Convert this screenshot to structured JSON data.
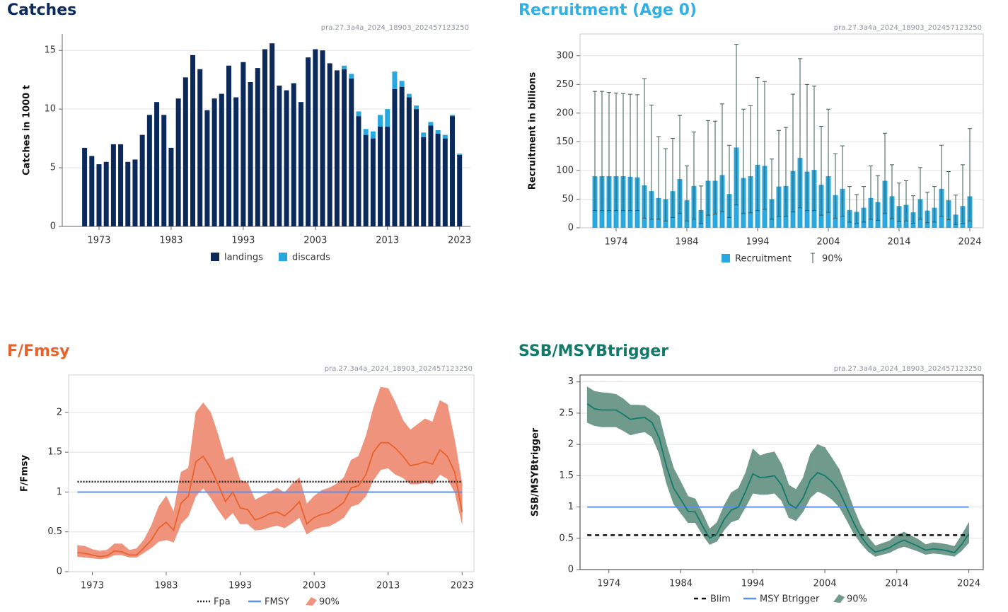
{
  "chart_data": [
    {
      "type": "bar",
      "title": "Catches",
      "title_color": "#0b2a5b",
      "subtitle": "pra.27.3a4a_2024_18903_202457123250",
      "ylabel": "Catches in 1000 t",
      "stacked": true,
      "grid": true,
      "x": [
        1971,
        1972,
        1973,
        1974,
        1975,
        1976,
        1977,
        1978,
        1979,
        1980,
        1981,
        1982,
        1983,
        1984,
        1985,
        1986,
        1987,
        1988,
        1989,
        1990,
        1991,
        1992,
        1993,
        1994,
        1995,
        1996,
        1997,
        1998,
        1999,
        2000,
        2001,
        2002,
        2003,
        2004,
        2005,
        2006,
        2007,
        2008,
        2009,
        2010,
        2011,
        2012,
        2013,
        2014,
        2015,
        2016,
        2017,
        2018,
        2019,
        2020,
        2021,
        2022,
        2023
      ],
      "xlim": [
        1967.9,
        2024.5
      ],
      "xticks": [
        1973,
        1983,
        1993,
        2003,
        2013,
        2023
      ],
      "ylim": [
        0,
        16.4
      ],
      "yticks": [
        0,
        5,
        10,
        15
      ],
      "series": [
        {
          "name": "landings",
          "color": "#0b2a5b",
          "values": [
            6.7,
            6.0,
            5.3,
            5.5,
            7.0,
            7.0,
            5.5,
            5.7,
            7.8,
            9.5,
            10.6,
            9.5,
            6.7,
            10.9,
            12.7,
            14.6,
            13.4,
            9.9,
            10.9,
            11.3,
            13.7,
            11.0,
            14.0,
            12.3,
            13.5,
            15.1,
            15.6,
            12.0,
            11.6,
            12.2,
            10.6,
            14.4,
            15.1,
            15.0,
            13.9,
            13.3,
            13.4,
            12.6,
            9.4,
            7.8,
            7.5,
            8.5,
            8.5,
            11.7,
            11.9,
            11.0,
            10.0,
            7.6,
            8.6,
            7.9,
            7.5,
            9.4,
            6.1
          ]
        },
        {
          "name": "discards",
          "color": "#29a8e0",
          "values": [
            0,
            0,
            0,
            0,
            0,
            0,
            0,
            0,
            0,
            0,
            0,
            0,
            0,
            0,
            0,
            0,
            0,
            0,
            0,
            0,
            0,
            0,
            0,
            0,
            0,
            0,
            0,
            0,
            0,
            0,
            0,
            0,
            0,
            0,
            0,
            0,
            0.3,
            0.4,
            0.4,
            0.5,
            0.6,
            1.0,
            1.5,
            1.5,
            0.5,
            0.3,
            0.3,
            0.4,
            0.3,
            0.3,
            0.3,
            0.1,
            0.1
          ]
        }
      ]
    },
    {
      "type": "bar",
      "title": "Recruitment (Age 0)",
      "title_color": "#2fb0e6",
      "subtitle": "pra.27.3a4a_2024_18903_202457123250",
      "ylabel": "Recruitment in billions",
      "grid": true,
      "x": [
        1971,
        1972,
        1973,
        1974,
        1975,
        1976,
        1977,
        1978,
        1979,
        1980,
        1981,
        1982,
        1983,
        1984,
        1985,
        1986,
        1987,
        1988,
        1989,
        1990,
        1991,
        1992,
        1993,
        1994,
        1995,
        1996,
        1997,
        1998,
        1999,
        2000,
        2001,
        2002,
        2003,
        2004,
        2005,
        2006,
        2007,
        2008,
        2009,
        2010,
        2011,
        2012,
        2013,
        2014,
        2015,
        2016,
        2017,
        2018,
        2019,
        2020,
        2021,
        2022,
        2023,
        2024
      ],
      "xlim": [
        1968.9,
        2025.9
      ],
      "xticks": [
        1974,
        1984,
        1994,
        2004,
        2014,
        2024
      ],
      "ylim": [
        0,
        338
      ],
      "yticks": [
        0,
        50,
        100,
        150,
        200,
        250,
        300
      ],
      "series": [
        {
          "name": "Recruitment",
          "color": "#29a8e0",
          "values": [
            90,
            90,
            90,
            90,
            90,
            89,
            88,
            74,
            64,
            52,
            50,
            64,
            85,
            48,
            73,
            31,
            82,
            82,
            92,
            59,
            140,
            87,
            90,
            110,
            108,
            50,
            72,
            73,
            99,
            122,
            98,
            101,
            75,
            90,
            57,
            68,
            31,
            28,
            35,
            52,
            45,
            82,
            55,
            38,
            40,
            27,
            50,
            30,
            35,
            68,
            48,
            23,
            38,
            55
          ],
          "interval": {
            "name": "90%",
            "color": "#3a5a50",
            "lower": [
              30,
              30,
              30,
              30,
              30,
              30,
              30,
              17,
              15,
              15,
              12,
              18,
              25,
              12,
              15,
              8,
              22,
              24,
              28,
              18,
              40,
              25,
              26,
              30,
              32,
              15,
              20,
              20,
              28,
              35,
              30,
              30,
              22,
              27,
              17,
              20,
              10,
              8,
              10,
              15,
              13,
              25,
              16,
              11,
              12,
              8,
              15,
              9,
              10,
              20,
              14,
              6,
              8,
              12
            ],
            "upper": [
              238,
              238,
              236,
              235,
              234,
              233,
              232,
              260,
              214,
              159,
              138,
              156,
              196,
              108,
              167,
              73,
              187,
              186,
              216,
              144,
              320,
              207,
              213,
              262,
              255,
              120,
              170,
              175,
              233,
              295,
              250,
              247,
              177,
              207,
              129,
              143,
              72,
              58,
              72,
              108,
              91,
              165,
              110,
              78,
              82,
              56,
              105,
              62,
              72,
              144,
              98,
              57,
              110,
              173
            ]
          }
        }
      ]
    },
    {
      "type": "line",
      "title": "F/Fmsy",
      "title_color": "#e8622c",
      "subtitle": "pra.27.3a4a_2024_18903_202457123250",
      "ylabel": "F/Fmsy",
      "grid": true,
      "x": [
        1971,
        1972,
        1973,
        1974,
        1975,
        1976,
        1977,
        1978,
        1979,
        1980,
        1981,
        1982,
        1983,
        1984,
        1985,
        1986,
        1987,
        1988,
        1989,
        1990,
        1991,
        1992,
        1993,
        1994,
        1995,
        1996,
        1997,
        1998,
        1999,
        2000,
        2001,
        2002,
        2003,
        2004,
        2005,
        2006,
        2007,
        2008,
        2009,
        2010,
        2011,
        2012,
        2013,
        2014,
        2015,
        2016,
        2017,
        2018,
        2019,
        2020,
        2021,
        2022,
        2023
      ],
      "xlim": [
        1969.8,
        2024.6
      ],
      "xticks": [
        1973,
        1983,
        1993,
        2003,
        2013,
        2023
      ],
      "ylim": [
        0,
        2.47
      ],
      "yticks": [
        0,
        0.5,
        1,
        1.5,
        2
      ],
      "reference_lines": [
        {
          "name": "Fpa",
          "value": 1.13,
          "color": "#222222",
          "style": "dotted"
        },
        {
          "name": "FMSY",
          "value": 1,
          "color": "#5b8ff0",
          "style": "solid"
        }
      ],
      "series": [
        {
          "color": "#e8622c",
          "values": [
            0.24,
            0.23,
            0.21,
            0.19,
            0.2,
            0.26,
            0.25,
            0.21,
            0.21,
            0.3,
            0.4,
            0.55,
            0.62,
            0.52,
            0.86,
            0.95,
            1.38,
            1.45,
            1.3,
            1.1,
            0.88,
            1.0,
            0.8,
            0.78,
            0.65,
            0.68,
            0.73,
            0.75,
            0.7,
            0.78,
            0.88,
            0.6,
            0.68,
            0.72,
            0.74,
            0.8,
            0.87,
            1.05,
            1.08,
            1.22,
            1.5,
            1.62,
            1.62,
            1.55,
            1.45,
            1.33,
            1.35,
            1.38,
            1.35,
            1.53,
            1.45,
            1.25,
            0.75
          ],
          "interval": {
            "name": "90%",
            "color": "#f0937c",
            "lower": [
              0.19,
              0.18,
              0.17,
              0.16,
              0.17,
              0.21,
              0.21,
              0.18,
              0.18,
              0.24,
              0.3,
              0.38,
              0.4,
              0.37,
              0.6,
              0.7,
              0.95,
              1.05,
              0.93,
              0.78,
              0.65,
              0.74,
              0.6,
              0.6,
              0.52,
              0.53,
              0.56,
              0.58,
              0.55,
              0.61,
              0.68,
              0.47,
              0.53,
              0.56,
              0.57,
              0.62,
              0.68,
              0.82,
              0.85,
              0.95,
              1.15,
              1.28,
              1.3,
              1.22,
              1.18,
              1.1,
              1.1,
              1.12,
              1.1,
              1.22,
              1.17,
              1.0,
              0.6
            ],
            "upper": [
              0.33,
              0.32,
              0.28,
              0.26,
              0.27,
              0.35,
              0.35,
              0.27,
              0.29,
              0.4,
              0.58,
              0.82,
              0.95,
              0.75,
              1.25,
              1.3,
              2.0,
              2.12,
              2.0,
              1.72,
              1.4,
              1.44,
              1.15,
              1.12,
              0.9,
              0.95,
              1.0,
              1.05,
              0.99,
              1.1,
              1.18,
              0.85,
              0.95,
              1.02,
              1.05,
              1.1,
              1.18,
              1.4,
              1.45,
              1.7,
              2.05,
              2.32,
              2.3,
              2.12,
              1.9,
              1.78,
              1.85,
              1.92,
              1.88,
              2.15,
              2.1,
              1.65,
              1.1
            ]
          }
        }
      ]
    },
    {
      "type": "line",
      "title": "SSB/MSYBtrigger",
      "title_color": "#127a6a",
      "subtitle": "pra.27.3a4a_2024_18903_202457123250",
      "ylabel": "SSB/MSYBtrigger",
      "grid": true,
      "x": [
        1971,
        1972,
        1973,
        1974,
        1975,
        1976,
        1977,
        1978,
        1979,
        1980,
        1981,
        1982,
        1983,
        1984,
        1985,
        1986,
        1987,
        1988,
        1989,
        1990,
        1991,
        1992,
        1993,
        1994,
        1995,
        1996,
        1997,
        1998,
        1999,
        2000,
        2001,
        2002,
        2003,
        2004,
        2005,
        2006,
        2007,
        2008,
        2009,
        2010,
        2011,
        2012,
        2013,
        2014,
        2015,
        2016,
        2017,
        2018,
        2019,
        2020,
        2021,
        2022,
        2023,
        2024
      ],
      "xlim": [
        1970,
        2026
      ],
      "xticks": [
        1974,
        1984,
        1994,
        2004,
        2014,
        2024
      ],
      "ylim": [
        0,
        3.11
      ],
      "yticks": [
        0,
        0.5,
        1,
        1.5,
        2,
        2.5,
        3
      ],
      "reference_lines": [
        {
          "name": "Blim",
          "value": 0.55,
          "color": "#111111",
          "style": "dashed"
        },
        {
          "name": "MSY Btrigger",
          "value": 1,
          "color": "#5b8ff0",
          "style": "solid"
        }
      ],
      "series": [
        {
          "color": "#127a6a",
          "values": [
            2.65,
            2.57,
            2.55,
            2.55,
            2.55,
            2.48,
            2.4,
            2.42,
            2.43,
            2.35,
            2.1,
            1.65,
            1.3,
            1.12,
            0.93,
            0.92,
            0.7,
            0.5,
            0.57,
            0.8,
            0.95,
            1.0,
            1.25,
            1.53,
            1.47,
            1.48,
            1.5,
            1.35,
            1.05,
            0.98,
            1.15,
            1.43,
            1.55,
            1.5,
            1.4,
            1.25,
            1.0,
            0.75,
            0.53,
            0.38,
            0.28,
            0.31,
            0.35,
            0.42,
            0.47,
            0.42,
            0.37,
            0.31,
            0.33,
            0.32,
            0.3,
            0.27,
            0.4,
            0.57
          ],
          "interval": {
            "name": "90%",
            "color": "#6f9a8c",
            "lower": [
              2.35,
              2.3,
              2.28,
              2.28,
              2.28,
              2.22,
              2.15,
              2.18,
              2.2,
              2.12,
              1.85,
              1.38,
              1.05,
              0.9,
              0.75,
              0.75,
              0.56,
              0.4,
              0.45,
              0.63,
              0.76,
              0.8,
              1.0,
              1.22,
              1.2,
              1.2,
              1.22,
              1.1,
              0.83,
              0.78,
              0.93,
              1.15,
              1.25,
              1.2,
              1.12,
              1.0,
              0.8,
              0.58,
              0.42,
              0.29,
              0.21,
              0.24,
              0.27,
              0.33,
              0.37,
              0.33,
              0.29,
              0.24,
              0.26,
              0.25,
              0.23,
              0.21,
              0.3,
              0.43
            ],
            "upper": [
              2.92,
              2.85,
              2.83,
              2.82,
              2.8,
              2.73,
              2.63,
              2.63,
              2.62,
              2.54,
              2.45,
              2.0,
              1.62,
              1.4,
              1.17,
              1.13,
              0.9,
              0.65,
              0.75,
              1.02,
              1.23,
              1.3,
              1.55,
              1.93,
              1.82,
              1.86,
              1.88,
              1.68,
              1.35,
              1.28,
              1.47,
              1.85,
              2.0,
              1.95,
              1.78,
              1.6,
              1.3,
              0.98,
              0.7,
              0.52,
              0.38,
              0.42,
              0.46,
              0.55,
              0.6,
              0.54,
              0.48,
              0.4,
              0.43,
              0.42,
              0.4,
              0.37,
              0.55,
              0.75
            ]
          }
        }
      ]
    }
  ]
}
